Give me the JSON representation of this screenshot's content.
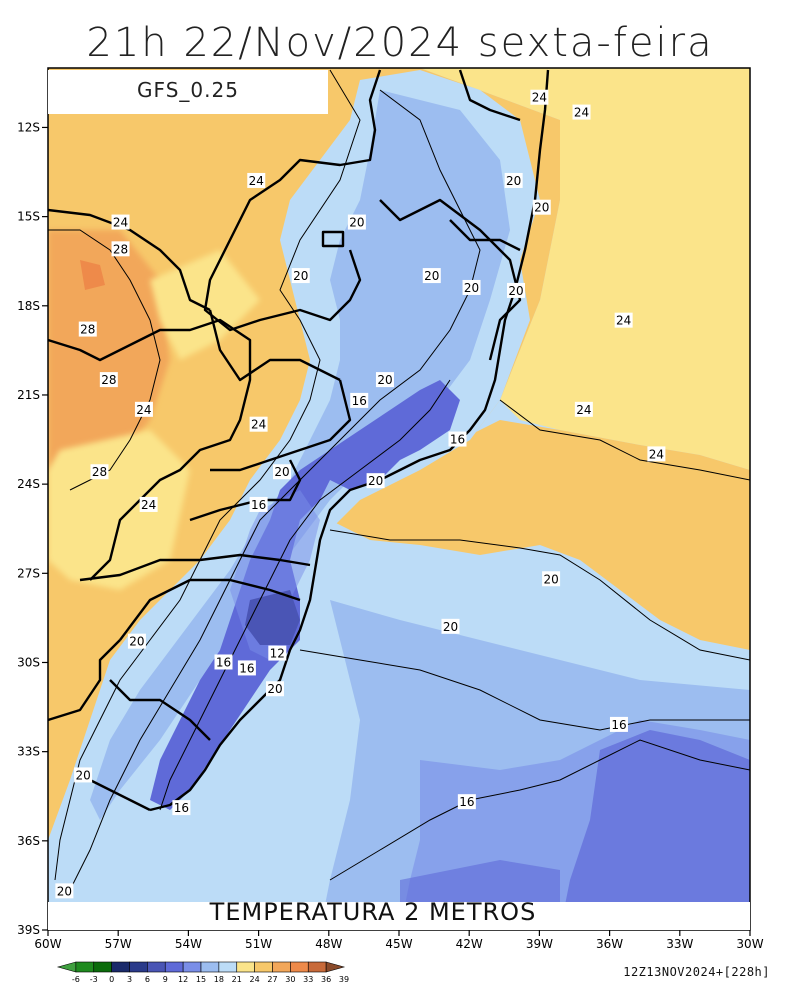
{
  "title": "21h 22/Nov/2024 sexta-feira",
  "model": "GFS_0.25",
  "variable_label": "TEMPERATURA 2 METROS",
  "run_info": "12Z13NOV2024+[228h]",
  "axes": {
    "lat_ticks": [
      "12S",
      "15S",
      "18S",
      "21S",
      "24S",
      "27S",
      "30S",
      "33S",
      "36S",
      "39S"
    ],
    "lon_ticks": [
      "60W",
      "57W",
      "54W",
      "51W",
      "48W",
      "45W",
      "42W",
      "39W",
      "36W",
      "33W",
      "30W"
    ],
    "lat_range": [
      -39,
      -10
    ],
    "lon_range": [
      -60,
      -30
    ]
  },
  "colorbar": {
    "labels": [
      "-6",
      "-3",
      "0",
      "3",
      "6",
      "9",
      "12",
      "15",
      "18",
      "21",
      "24",
      "27",
      "30",
      "33",
      "36",
      "39"
    ],
    "colors": [
      "#3fa03f",
      "#1f8a1f",
      "#0b6b0b",
      "#1a2a6a",
      "#2a3a8a",
      "#4a55b5",
      "#5f6ad8",
      "#7a8ee8",
      "#9cbdf0",
      "#bcdcf7",
      "#fbe48a",
      "#f7c86a",
      "#f2a75a",
      "#ee8a4a",
      "#c86a3a",
      "#8a4a2a"
    ]
  },
  "contour_labels": [
    {
      "text": "24",
      "lon": -39.0,
      "lat": -11.0
    },
    {
      "text": "24",
      "lon": -37.2,
      "lat": -11.5
    },
    {
      "text": "24",
      "lon": -51.1,
      "lat": -13.8
    },
    {
      "text": "20",
      "lon": -40.1,
      "lat": -13.8
    },
    {
      "text": "20",
      "lon": -38.9,
      "lat": -14.7
    },
    {
      "text": "24",
      "lon": -56.9,
      "lat": -15.2
    },
    {
      "text": "20",
      "lon": -46.8,
      "lat": -15.2
    },
    {
      "text": "28",
      "lon": -56.9,
      "lat": -16.1
    },
    {
      "text": "20",
      "lon": -49.2,
      "lat": -17.0
    },
    {
      "text": "20",
      "lon": -43.6,
      "lat": -17.0
    },
    {
      "text": "20",
      "lon": -41.9,
      "lat": -17.4
    },
    {
      "text": "20",
      "lon": -40.0,
      "lat": -17.5
    },
    {
      "text": "24",
      "lon": -35.4,
      "lat": -18.5
    },
    {
      "text": "28",
      "lon": -58.3,
      "lat": -18.8
    },
    {
      "text": "20",
      "lon": -45.6,
      "lat": -20.5
    },
    {
      "text": "28",
      "lon": -57.4,
      "lat": -20.5
    },
    {
      "text": "16",
      "lon": -46.7,
      "lat": -21.2
    },
    {
      "text": "24",
      "lon": -55.9,
      "lat": -21.5
    },
    {
      "text": "24",
      "lon": -37.1,
      "lat": -21.5
    },
    {
      "text": "24",
      "lon": -51.0,
      "lat": -22.0
    },
    {
      "text": "16",
      "lon": -42.5,
      "lat": -22.5
    },
    {
      "text": "24",
      "lon": -34.0,
      "lat": -23.0
    },
    {
      "text": "20",
      "lon": -50.0,
      "lat": -23.6
    },
    {
      "text": "28",
      "lon": -57.8,
      "lat": -23.6
    },
    {
      "text": "20",
      "lon": -46.0,
      "lat": -23.9
    },
    {
      "text": "16",
      "lon": -51.0,
      "lat": -24.7
    },
    {
      "text": "24",
      "lon": -55.7,
      "lat": -24.7
    },
    {
      "text": "20",
      "lon": -38.5,
      "lat": -27.2
    },
    {
      "text": "20",
      "lon": -56.2,
      "lat": -29.3
    },
    {
      "text": "20",
      "lon": -42.8,
      "lat": -28.8
    },
    {
      "text": "12",
      "lon": -50.2,
      "lat": -29.7
    },
    {
      "text": "16",
      "lon": -52.5,
      "lat": -30.0
    },
    {
      "text": "16",
      "lon": -51.5,
      "lat": -30.2
    },
    {
      "text": "20",
      "lon": -50.3,
      "lat": -30.9
    },
    {
      "text": "16",
      "lon": -35.6,
      "lat": -32.1
    },
    {
      "text": "20",
      "lon": -58.5,
      "lat": -33.8
    },
    {
      "text": "16",
      "lon": -42.1,
      "lat": -34.7
    },
    {
      "text": "16",
      "lon": -54.3,
      "lat": -34.9
    },
    {
      "text": "20",
      "lon": -59.3,
      "lat": -37.7
    }
  ]
}
